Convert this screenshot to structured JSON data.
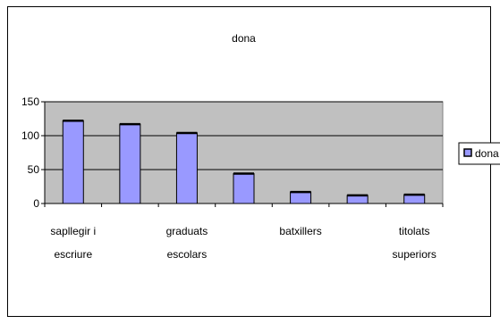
{
  "chart_data": {
    "type": "bar",
    "title": "dona",
    "categories": [
      [
        "sapllegir i",
        "escriure"
      ],
      [
        ""
      ],
      [
        "graduats",
        "escolars"
      ],
      [
        ""
      ],
      [
        "batxillers"
      ],
      [
        ""
      ],
      [
        "titolats",
        "superiors"
      ]
    ],
    "series": [
      {
        "name": "dona",
        "values": [
          122,
          117,
          104,
          44,
          17,
          12,
          13
        ]
      }
    ],
    "ylim": [
      0,
      150
    ],
    "yticks": [
      0,
      50,
      100,
      150
    ],
    "grid": true,
    "legend": "right",
    "colors": {
      "bar_fill": "#9999ff",
      "plot_bg": "#c0c0c0",
      "grid": "#000000",
      "frame": "#000000"
    }
  }
}
